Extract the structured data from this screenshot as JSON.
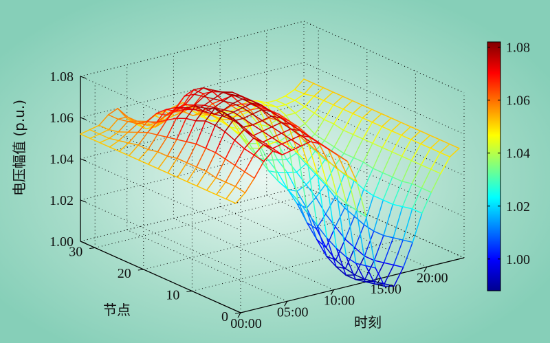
{
  "chart_data": {
    "type": "wireframe-surface",
    "x_axis": {
      "label": "时刻",
      "tick_hours": [
        0,
        5,
        10,
        15,
        20
      ],
      "tick_labels": [
        "00:00",
        "05:00",
        "10:00",
        "15:00",
        "20:00"
      ],
      "range_hours": [
        0,
        24
      ]
    },
    "y_axis": {
      "label": "节点",
      "ticks": [
        0,
        10,
        20,
        30
      ],
      "tick_labels": [
        "0",
        "10",
        "20",
        "30"
      ],
      "range": [
        0,
        33
      ]
    },
    "z_axis": {
      "label": "电压幅值 (p.u.)",
      "ticks": [
        1.0,
        1.02,
        1.04,
        1.06,
        1.08
      ],
      "tick_labels": [
        "1.00",
        "1.02",
        "1.04",
        "1.06",
        "1.08"
      ],
      "range": [
        1.0,
        1.08
      ]
    },
    "colorbar": {
      "colormap": "jet",
      "range": [
        0.988,
        1.082
      ],
      "ticks": [
        1.0,
        1.02,
        1.04,
        1.06,
        1.08
      ],
      "tick_labels": [
        "1.00",
        "1.02",
        "1.04",
        "1.06",
        "1.08"
      ]
    },
    "grid": true,
    "hours": [
      0,
      1,
      2,
      3,
      4,
      5,
      6,
      7,
      8,
      9,
      10,
      11,
      12,
      13,
      14,
      15,
      16,
      17,
      18,
      19,
      20,
      21,
      22,
      23,
      24
    ],
    "nodes": [
      33,
      31,
      29,
      27,
      25,
      23,
      21,
      19,
      17,
      15,
      13,
      11,
      9,
      7,
      5,
      3,
      1
    ],
    "voltage_pu": [
      [
        1.052,
        1.053,
        1.054,
        1.058,
        1.06,
        1.054,
        1.05,
        1.05,
        1.052,
        1.053,
        1.054,
        1.055,
        1.05,
        1.046,
        1.046,
        1.046,
        1.045,
        1.046,
        1.048,
        1.047,
        1.045,
        1.045,
        1.046,
        1.048,
        1.052
      ],
      [
        1.052,
        1.053,
        1.054,
        1.058,
        1.058,
        1.054,
        1.05,
        1.05,
        1.052,
        1.053,
        1.054,
        1.055,
        1.05,
        1.046,
        1.046,
        1.046,
        1.045,
        1.046,
        1.048,
        1.047,
        1.045,
        1.045,
        1.046,
        1.048,
        1.052
      ],
      [
        1.052,
        1.053,
        1.055,
        1.059,
        1.058,
        1.055,
        1.053,
        1.057,
        1.058,
        1.057,
        1.054,
        1.054,
        1.052,
        1.048,
        1.044,
        1.042,
        1.043,
        1.042,
        1.04,
        1.042,
        1.043,
        1.043,
        1.045,
        1.049,
        1.052
      ],
      [
        1.052,
        1.054,
        1.057,
        1.06,
        1.06,
        1.058,
        1.058,
        1.062,
        1.064,
        1.062,
        1.058,
        1.055,
        1.052,
        1.047,
        1.042,
        1.037,
        1.036,
        1.036,
        1.034,
        1.036,
        1.038,
        1.04,
        1.044,
        1.049,
        1.052
      ],
      [
        1.052,
        1.055,
        1.059,
        1.063,
        1.066,
        1.064,
        1.066,
        1.071,
        1.073,
        1.07,
        1.064,
        1.059,
        1.054,
        1.046,
        1.038,
        1.032,
        1.03,
        1.029,
        1.028,
        1.03,
        1.034,
        1.037,
        1.043,
        1.049,
        1.052
      ],
      [
        1.052,
        1.056,
        1.061,
        1.065,
        1.07,
        1.068,
        1.07,
        1.074,
        1.076,
        1.073,
        1.068,
        1.064,
        1.06,
        1.052,
        1.04,
        1.028,
        1.026,
        1.025,
        1.024,
        1.027,
        1.032,
        1.036,
        1.043,
        1.049,
        1.052
      ],
      [
        1.052,
        1.056,
        1.062,
        1.068,
        1.073,
        1.071,
        1.072,
        1.075,
        1.077,
        1.075,
        1.072,
        1.067,
        1.063,
        1.056,
        1.044,
        1.025,
        1.02,
        1.018,
        1.02,
        1.024,
        1.03,
        1.035,
        1.042,
        1.049,
        1.052
      ],
      [
        1.052,
        1.057,
        1.063,
        1.071,
        1.075,
        1.073,
        1.074,
        1.076,
        1.078,
        1.077,
        1.074,
        1.069,
        1.066,
        1.06,
        1.048,
        1.023,
        1.015,
        1.012,
        1.016,
        1.021,
        1.029,
        1.034,
        1.042,
        1.049,
        1.052
      ],
      [
        1.052,
        1.057,
        1.064,
        1.073,
        1.078,
        1.074,
        1.075,
        1.077,
        1.079,
        1.077,
        1.074,
        1.07,
        1.067,
        1.061,
        1.048,
        1.02,
        1.008,
        1.004,
        1.01,
        1.017,
        1.027,
        1.034,
        1.042,
        1.049,
        1.052
      ],
      [
        1.052,
        1.058,
        1.065,
        1.074,
        1.079,
        1.075,
        1.076,
        1.078,
        1.079,
        1.077,
        1.074,
        1.07,
        1.067,
        1.06,
        1.046,
        1.016,
        1.002,
        0.997,
        1.006,
        1.014,
        1.026,
        1.034,
        1.042,
        1.049,
        1.052
      ],
      [
        1.052,
        1.058,
        1.066,
        1.076,
        1.081,
        1.076,
        1.077,
        1.078,
        1.079,
        1.077,
        1.073,
        1.069,
        1.066,
        1.058,
        1.043,
        1.012,
        0.996,
        0.993,
        1.002,
        1.012,
        1.024,
        1.033,
        1.042,
        1.049,
        1.052
      ],
      [
        1.052,
        1.058,
        1.066,
        1.076,
        1.081,
        1.076,
        1.076,
        1.077,
        1.078,
        1.076,
        1.072,
        1.068,
        1.065,
        1.056,
        1.04,
        1.008,
        0.993,
        0.991,
        1.0,
        1.01,
        1.023,
        1.033,
        1.042,
        1.049,
        1.052
      ],
      [
        1.052,
        1.058,
        1.066,
        1.075,
        1.08,
        1.075,
        1.075,
        1.076,
        1.077,
        1.075,
        1.071,
        1.067,
        1.063,
        1.054,
        1.037,
        1.005,
        0.991,
        0.99,
        0.998,
        1.009,
        1.023,
        1.033,
        1.042,
        1.049,
        1.052
      ],
      [
        1.052,
        1.057,
        1.065,
        1.073,
        1.077,
        1.073,
        1.074,
        1.075,
        1.076,
        1.074,
        1.07,
        1.066,
        1.062,
        1.052,
        1.034,
        1.003,
        0.991,
        0.99,
        0.998,
        1.009,
        1.023,
        1.033,
        1.042,
        1.049,
        1.052
      ],
      [
        1.052,
        1.057,
        1.064,
        1.071,
        1.075,
        1.072,
        1.073,
        1.074,
        1.075,
        1.073,
        1.069,
        1.065,
        1.061,
        1.05,
        1.032,
        1.002,
        0.992,
        0.991,
        0.999,
        1.01,
        1.024,
        1.034,
        1.042,
        1.049,
        1.052
      ],
      [
        1.052,
        1.057,
        1.063,
        1.07,
        1.074,
        1.071,
        1.072,
        1.073,
        1.074,
        1.072,
        1.068,
        1.064,
        1.06,
        1.049,
        1.031,
        1.003,
        0.993,
        0.992,
        1.0,
        1.011,
        1.025,
        1.034,
        1.042,
        1.049,
        1.052
      ],
      [
        1.052,
        1.056,
        1.062,
        1.069,
        1.073,
        1.07,
        1.071,
        1.072,
        1.073,
        1.071,
        1.067,
        1.063,
        1.059,
        1.048,
        1.03,
        1.004,
        0.994,
        0.993,
        1.001,
        1.012,
        1.025,
        1.034,
        1.042,
        1.049,
        1.052
      ]
    ]
  }
}
